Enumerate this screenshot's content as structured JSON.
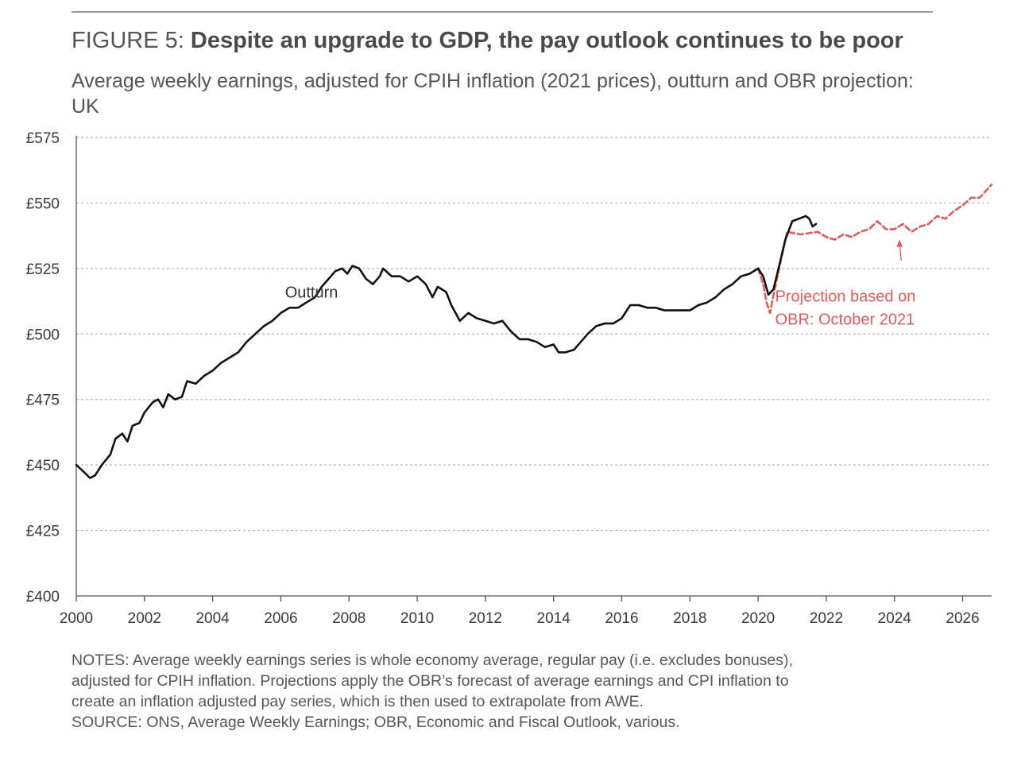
{
  "figure": {
    "label": "FIGURE 5:",
    "title": "Despite an upgrade to GDP, the pay outlook continues to be poor",
    "subtitle": "Average weekly earnings, adjusted for CPIH inflation (2021 prices), outturn and OBR projection: UK"
  },
  "notes": {
    "line1": "NOTES: Average weekly earnings series is whole economy average, regular pay (i.e. excludes bonuses),",
    "line2": "adjusted for CPIH inflation. Projections apply the OBR’s forecast of average earnings and CPI inflation to",
    "line3": "create an inflation adjusted pay series, which is then used to extrapolate from AWE.",
    "source": "SOURCE: ONS, Average Weekly Earnings; OBR, Economic and Fiscal Outlook, various."
  },
  "colors": {
    "outturn": "#111111",
    "projection": "#e05a5a",
    "grid": "#b5b5b5",
    "axis": "#555555"
  },
  "chart_data": {
    "type": "line",
    "title": "Despite an upgrade to GDP, the pay outlook continues to be poor",
    "xlabel": "",
    "ylabel": "",
    "xlim": [
      2000,
      2026.85
    ],
    "ylim": [
      400,
      575
    ],
    "y_ticks": [
      400,
      425,
      450,
      475,
      500,
      525,
      550,
      575
    ],
    "y_tick_labels": [
      "£400",
      "£425",
      "£450",
      "£475",
      "£500",
      "£525",
      "£550",
      "£575"
    ],
    "x_ticks": [
      2000,
      2002,
      2004,
      2006,
      2008,
      2010,
      2012,
      2014,
      2016,
      2018,
      2020,
      2022,
      2024,
      2026
    ],
    "x_tick_labels": [
      "2000",
      "2002",
      "2004",
      "2006",
      "2008",
      "2010",
      "2012",
      "2014",
      "2016",
      "2018",
      "2020",
      "2022",
      "2024",
      "2026"
    ],
    "grid": true,
    "series": [
      {
        "name": "Outturn",
        "style": "solid",
        "points": [
          [
            2000.0,
            450
          ],
          [
            2000.25,
            447
          ],
          [
            2000.4,
            445
          ],
          [
            2000.55,
            446
          ],
          [
            2000.75,
            450
          ],
          [
            2001.0,
            454
          ],
          [
            2001.15,
            460
          ],
          [
            2001.35,
            462
          ],
          [
            2001.5,
            459
          ],
          [
            2001.65,
            465
          ],
          [
            2001.85,
            466
          ],
          [
            2002.0,
            470
          ],
          [
            2002.25,
            474
          ],
          [
            2002.4,
            475
          ],
          [
            2002.55,
            472
          ],
          [
            2002.7,
            477
          ],
          [
            2002.9,
            475
          ],
          [
            2003.1,
            476
          ],
          [
            2003.25,
            482
          ],
          [
            2003.5,
            481
          ],
          [
            2003.75,
            484
          ],
          [
            2004.0,
            486
          ],
          [
            2004.25,
            489
          ],
          [
            2004.5,
            491
          ],
          [
            2004.75,
            493
          ],
          [
            2005.0,
            497
          ],
          [
            2005.25,
            500
          ],
          [
            2005.5,
            503
          ],
          [
            2005.75,
            505
          ],
          [
            2006.0,
            508
          ],
          [
            2006.25,
            510
          ],
          [
            2006.5,
            510
          ],
          [
            2006.75,
            512
          ],
          [
            2007.0,
            514
          ],
          [
            2007.2,
            518
          ],
          [
            2007.4,
            521
          ],
          [
            2007.6,
            524
          ],
          [
            2007.8,
            525
          ],
          [
            2007.95,
            523
          ],
          [
            2008.1,
            526
          ],
          [
            2008.3,
            525
          ],
          [
            2008.5,
            521
          ],
          [
            2008.7,
            519
          ],
          [
            2008.9,
            522
          ],
          [
            2009.0,
            525
          ],
          [
            2009.25,
            522
          ],
          [
            2009.5,
            522
          ],
          [
            2009.75,
            520
          ],
          [
            2010.0,
            522
          ],
          [
            2010.25,
            519
          ],
          [
            2010.45,
            514
          ],
          [
            2010.6,
            518
          ],
          [
            2010.85,
            516
          ],
          [
            2011.0,
            511
          ],
          [
            2011.25,
            505
          ],
          [
            2011.5,
            508
          ],
          [
            2011.75,
            506
          ],
          [
            2012.0,
            505
          ],
          [
            2012.25,
            504
          ],
          [
            2012.5,
            505
          ],
          [
            2012.75,
            501
          ],
          [
            2013.0,
            498
          ],
          [
            2013.25,
            498
          ],
          [
            2013.5,
            497
          ],
          [
            2013.75,
            495
          ],
          [
            2014.0,
            496
          ],
          [
            2014.15,
            493
          ],
          [
            2014.35,
            493
          ],
          [
            2014.6,
            494
          ],
          [
            2014.8,
            497
          ],
          [
            2015.0,
            500
          ],
          [
            2015.25,
            503
          ],
          [
            2015.5,
            504
          ],
          [
            2015.75,
            504
          ],
          [
            2016.0,
            506
          ],
          [
            2016.25,
            511
          ],
          [
            2016.5,
            511
          ],
          [
            2016.75,
            510
          ],
          [
            2017.0,
            510
          ],
          [
            2017.25,
            509
          ],
          [
            2017.5,
            509
          ],
          [
            2017.75,
            509
          ],
          [
            2018.0,
            509
          ],
          [
            2018.25,
            511
          ],
          [
            2018.5,
            512
          ],
          [
            2018.75,
            514
          ],
          [
            2019.0,
            517
          ],
          [
            2019.25,
            519
          ],
          [
            2019.5,
            522
          ],
          [
            2019.75,
            523
          ],
          [
            2020.0,
            525
          ],
          [
            2020.15,
            522
          ],
          [
            2020.3,
            515
          ],
          [
            2020.45,
            517
          ],
          [
            2020.6,
            525
          ],
          [
            2020.8,
            536
          ],
          [
            2021.0,
            543
          ],
          [
            2021.2,
            544
          ],
          [
            2021.4,
            545
          ],
          [
            2021.5,
            544
          ],
          [
            2021.6,
            541
          ],
          [
            2021.7,
            542
          ]
        ]
      },
      {
        "name": "Projection based on OBR: October 2021",
        "style": "dashed",
        "points": [
          [
            2020.0,
            525
          ],
          [
            2020.15,
            519
          ],
          [
            2020.25,
            512
          ],
          [
            2020.35,
            508
          ],
          [
            2020.5,
            518
          ],
          [
            2020.7,
            530
          ],
          [
            2020.85,
            539
          ],
          [
            2021.25,
            538
          ],
          [
            2021.75,
            539
          ],
          [
            2022.0,
            537
          ],
          [
            2022.25,
            536
          ],
          [
            2022.5,
            538
          ],
          [
            2022.75,
            537
          ],
          [
            2023.0,
            539
          ],
          [
            2023.25,
            540
          ],
          [
            2023.5,
            543
          ],
          [
            2023.75,
            540
          ],
          [
            2024.0,
            540
          ],
          [
            2024.25,
            542
          ],
          [
            2024.5,
            539
          ],
          [
            2024.75,
            541
          ],
          [
            2025.0,
            542
          ],
          [
            2025.25,
            545
          ],
          [
            2025.5,
            544
          ],
          [
            2025.75,
            547
          ],
          [
            2026.0,
            549
          ],
          [
            2026.25,
            552
          ],
          [
            2026.5,
            552
          ],
          [
            2026.85,
            557
          ]
        ]
      }
    ],
    "annotations": [
      {
        "text": "Outturn",
        "x": 2006.9,
        "y": 516,
        "series": "Outturn"
      },
      {
        "lines": [
          "Projection based on",
          "OBR: October 2021"
        ],
        "x": 2020.5,
        "y": 513,
        "arrow_from": [
          2024.2,
          528
        ],
        "arrow_to": [
          2024.15,
          536
        ],
        "series": "Projection based on OBR: October 2021"
      }
    ]
  }
}
